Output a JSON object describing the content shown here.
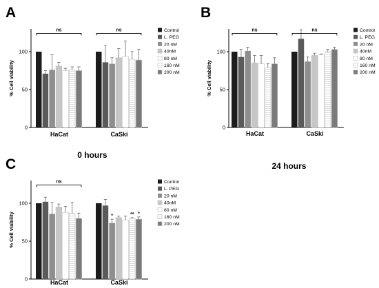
{
  "chart_data": [
    {
      "type": "bar",
      "panel": "A",
      "subtitle": "0  hours",
      "ylabel": "% Cell viability",
      "ylim": [
        0,
        130
      ],
      "yticks": [
        0,
        50,
        100
      ],
      "categories": [
        "HaCat",
        "CaSki"
      ],
      "ns_labels": [
        "ns",
        "ns"
      ],
      "legend_placement": "right",
      "series": [
        {
          "name": "Control",
          "values": [
            100,
            100
          ],
          "errors": [
            0,
            0
          ]
        },
        {
          "name": "L. PEG",
          "values": [
            71,
            86
          ],
          "errors": [
            4,
            22
          ]
        },
        {
          "name": "20 nM",
          "values": [
            76,
            84
          ],
          "errors": [
            20,
            8
          ]
        },
        {
          "name": "40nM",
          "values": [
            81,
            92
          ],
          "errors": [
            5,
            12
          ]
        },
        {
          "name": "80 nM",
          "values": [
            75,
            94
          ],
          "errors": [
            3,
            20
          ]
        },
        {
          "name": "160 nM",
          "values": [
            76,
            90
          ],
          "errors": [
            4,
            10
          ]
        },
        {
          "name": "200 nM",
          "values": [
            75,
            89
          ],
          "errors": [
            5,
            14
          ]
        }
      ],
      "significance": [
        [
          "",
          ""
        ],
        [
          "",
          ""
        ],
        [
          "",
          ""
        ],
        [
          "",
          ""
        ],
        [
          "",
          ""
        ],
        [
          "",
          ""
        ],
        [
          "",
          ""
        ]
      ]
    },
    {
      "type": "bar",
      "panel": "B",
      "subtitle": "24  hours",
      "ylabel": "% Cell viability",
      "ylim": [
        0,
        130
      ],
      "yticks": [
        0,
        50,
        100
      ],
      "categories": [
        "HaCat",
        "CaSki"
      ],
      "ns_labels": [
        "ns",
        "ns"
      ],
      "legend_placement": "right",
      "series": [
        {
          "name": "Control",
          "values": [
            100,
            100
          ],
          "errors": [
            0,
            0
          ]
        },
        {
          "name": "L. PEG",
          "values": [
            93,
            117
          ],
          "errors": [
            10,
            12
          ]
        },
        {
          "name": "20 nM",
          "values": [
            101,
            87
          ],
          "errors": [
            5,
            6
          ]
        },
        {
          "name": "40nM",
          "values": [
            85,
            95
          ],
          "errors": [
            10,
            3
          ]
        },
        {
          "name": "80 nM",
          "values": [
            84,
            96
          ],
          "errors": [
            11,
            1
          ]
        },
        {
          "name": "160 nM",
          "values": [
            79,
            100
          ],
          "errors": [
            5,
            3
          ]
        },
        {
          "name": "200 nM",
          "values": [
            84,
            103
          ],
          "errors": [
            8,
            3
          ]
        }
      ],
      "significance": [
        [
          "",
          ""
        ],
        [
          "",
          ""
        ],
        [
          "",
          ""
        ],
        [
          "",
          ""
        ],
        [
          "",
          ""
        ],
        [
          "",
          ""
        ],
        [
          "",
          ""
        ]
      ]
    },
    {
      "type": "bar",
      "panel": "C",
      "subtitle": "",
      "ylabel": "% Cell viability",
      "ylim": [
        0,
        130
      ],
      "yticks": [
        0,
        50,
        100
      ],
      "categories": [
        "HaCat",
        "CaSki"
      ],
      "ns_labels": [
        "ns",
        ""
      ],
      "legend_placement": "right",
      "series": [
        {
          "name": "Control",
          "values": [
            100,
            100
          ],
          "errors": [
            0,
            0
          ]
        },
        {
          "name": "L. PEG",
          "values": [
            102,
            97
          ],
          "errors": [
            6,
            8
          ]
        },
        {
          "name": "20 nM",
          "values": [
            86,
            74
          ],
          "errors": [
            15,
            5
          ]
        },
        {
          "name": "40nM",
          "values": [
            95,
            81
          ],
          "errors": [
            4,
            2
          ]
        },
        {
          "name": "80 nM",
          "values": [
            88,
            78
          ],
          "errors": [
            8,
            5
          ]
        },
        {
          "name": "160 nM",
          "values": [
            87,
            80
          ],
          "errors": [
            14,
            1
          ]
        },
        {
          "name": "200 nM",
          "values": [
            80,
            79
          ],
          "errors": [
            7,
            3
          ]
        }
      ],
      "significance": [
        [
          "",
          ""
        ],
        [
          "",
          ""
        ],
        [
          "",
          "*"
        ],
        [
          "",
          ""
        ],
        [
          "",
          ""
        ],
        [
          "",
          "**"
        ],
        [
          "",
          "*"
        ]
      ]
    }
  ],
  "colors": [
    "#1c1c1c",
    "#5a5a5a",
    "#8e8e8e",
    "#c6c6c6",
    "#ffffff",
    "#f3f3f3",
    "#7a7a7a"
  ]
}
